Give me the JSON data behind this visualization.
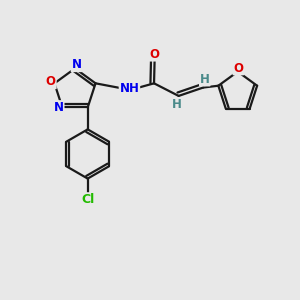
{
  "bg_color": "#e8e8e8",
  "bond_color": "#1a1a1a",
  "atom_colors": {
    "O": "#dd0000",
    "N": "#0000ee",
    "Cl": "#22bb00",
    "H": "#4a8a8a",
    "C": "#1a1a1a"
  },
  "font_size": 8.5,
  "line_width": 1.6,
  "fig_bg": "#e8e8e8"
}
